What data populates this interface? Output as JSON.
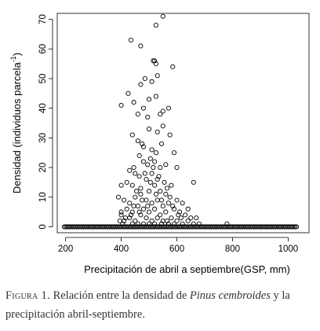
{
  "chart_data": {
    "type": "scatter",
    "xlabel": "Precipitación de abril a septiembre(GSP, mm)",
    "ylabel_main": "Densidad (individuos parcela",
    "ylabel_sup": "-1",
    "ylabel_close": ")",
    "xlim": [
      170,
      1075
    ],
    "ylim": [
      -2,
      72
    ],
    "xticks": [
      200,
      400,
      600,
      800,
      1000
    ],
    "yticks": [
      0,
      10,
      20,
      30,
      40,
      50,
      60,
      70
    ],
    "grid": false,
    "marker": "open-circle",
    "marker_color": "#000000",
    "points": [
      [
        550,
        71
      ],
      [
        435,
        63
      ],
      [
        525,
        68
      ],
      [
        470,
        61
      ],
      [
        515,
        56
      ],
      [
        525,
        55
      ],
      [
        520,
        56
      ],
      [
        585,
        54
      ],
      [
        470,
        48
      ],
      [
        485,
        50
      ],
      [
        510,
        49
      ],
      [
        530,
        51
      ],
      [
        425,
        45
      ],
      [
        525,
        44
      ],
      [
        400,
        41
      ],
      [
        445,
        42
      ],
      [
        480,
        40
      ],
      [
        500,
        43
      ],
      [
        550,
        39
      ],
      [
        570,
        40
      ],
      [
        495,
        37
      ],
      [
        460,
        38
      ],
      [
        540,
        38
      ],
      [
        500,
        33
      ],
      [
        530,
        32
      ],
      [
        550,
        34
      ],
      [
        575,
        31
      ],
      [
        440,
        31
      ],
      [
        460,
        29
      ],
      [
        475,
        28
      ],
      [
        480,
        27
      ],
      [
        510,
        26
      ],
      [
        525,
        25
      ],
      [
        545,
        28
      ],
      [
        590,
        25
      ],
      [
        465,
        24
      ],
      [
        480,
        22
      ],
      [
        495,
        21
      ],
      [
        505,
        23
      ],
      [
        520,
        22
      ],
      [
        540,
        20
      ],
      [
        560,
        21
      ],
      [
        600,
        20
      ],
      [
        445,
        20
      ],
      [
        430,
        19
      ],
      [
        450,
        18
      ],
      [
        465,
        17
      ],
      [
        490,
        16
      ],
      [
        510,
        18
      ],
      [
        530,
        16
      ],
      [
        555,
        15
      ],
      [
        580,
        14
      ],
      [
        400,
        14
      ],
      [
        420,
        15
      ],
      [
        440,
        14
      ],
      [
        470,
        13
      ],
      [
        500,
        12
      ],
      [
        520,
        14
      ],
      [
        540,
        12
      ],
      [
        560,
        11
      ],
      [
        575,
        10
      ],
      [
        600,
        9
      ],
      [
        620,
        8
      ],
      [
        640,
        6
      ],
      [
        660,
        15
      ],
      [
        390,
        10
      ],
      [
        410,
        9
      ],
      [
        430,
        8
      ],
      [
        450,
        10
      ],
      [
        470,
        11
      ],
      [
        490,
        9
      ],
      [
        510,
        8
      ],
      [
        530,
        9
      ],
      [
        550,
        7
      ],
      [
        570,
        8
      ],
      [
        590,
        6
      ],
      [
        610,
        5
      ],
      [
        630,
        4
      ],
      [
        650,
        3
      ],
      [
        670,
        3
      ],
      [
        420,
        6
      ],
      [
        440,
        5
      ],
      [
        460,
        7
      ],
      [
        480,
        6
      ],
      [
        500,
        5
      ],
      [
        520,
        6
      ],
      [
        540,
        4
      ],
      [
        560,
        5
      ],
      [
        580,
        3
      ],
      [
        600,
        2
      ],
      [
        400,
        4
      ],
      [
        430,
        3
      ],
      [
        450,
        2
      ],
      [
        470,
        4
      ],
      [
        490,
        3
      ],
      [
        510,
        2
      ],
      [
        530,
        3
      ],
      [
        550,
        2
      ],
      [
        570,
        1
      ],
      [
        590,
        1
      ],
      [
        410,
        2
      ],
      [
        440,
        1
      ],
      [
        460,
        1
      ],
      [
        480,
        1
      ],
      [
        500,
        1
      ],
      [
        520,
        1
      ],
      [
        545,
        1
      ],
      [
        565,
        2
      ],
      [
        620,
        1
      ],
      [
        680,
        1
      ],
      [
        780,
        1
      ],
      [
        400,
        5
      ],
      [
        455,
        12
      ],
      [
        485,
        18
      ],
      [
        515,
        20
      ],
      [
        535,
        17
      ],
      [
        505,
        15
      ],
      [
        475,
        9
      ],
      [
        445,
        7
      ],
      [
        525,
        11
      ],
      [
        545,
        9
      ],
      [
        565,
        13
      ],
      [
        495,
        7
      ],
      [
        465,
        5
      ],
      [
        585,
        7
      ],
      [
        605,
        4
      ],
      [
        615,
        3
      ],
      [
        435,
        4
      ],
      [
        415,
        3
      ],
      [
        395,
        2
      ],
      [
        405,
        1
      ],
      [
        640,
        2
      ],
      [
        660,
        1
      ]
    ],
    "zero_x_start": 195,
    "zero_x_end": 1030,
    "zero_count": 170
  },
  "caption": {
    "figure_label": "Figura 1.",
    "text_before": " Relación entre la densidad de ",
    "species": "Pinus cembroides",
    "text_after": " y la precipitación abril-septiembre."
  }
}
